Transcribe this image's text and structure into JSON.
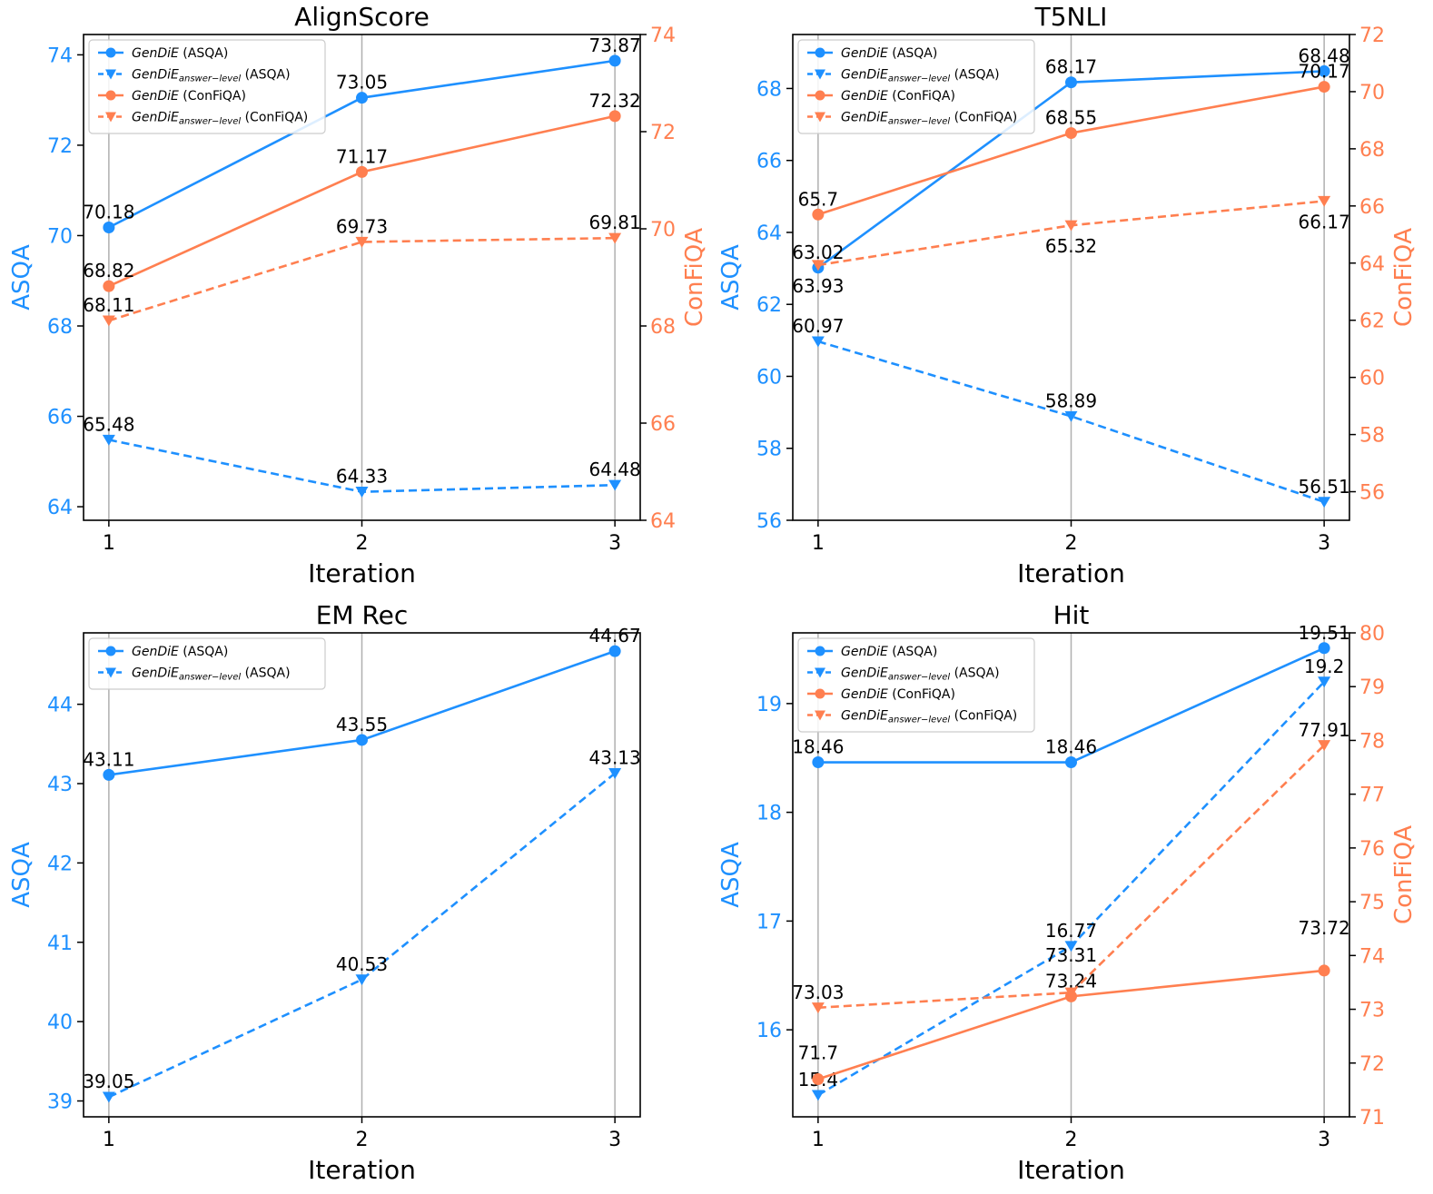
{
  "colors": {
    "asqa": "#1e90ff",
    "confiqa": "#ff7f50",
    "grid": "#b0b0b0",
    "axis": "#000000"
  },
  "chart_data": [
    {
      "type": "line",
      "title": "AlignScore",
      "xlabel": "Iteration",
      "ylabel_left": "ASQA",
      "ylabel_right": "ConFiQA",
      "x": [
        1,
        2,
        3
      ],
      "x_ticks": [
        "1",
        "2",
        "3"
      ],
      "xlim": [
        0.9,
        3.1
      ],
      "ylim_left": [
        63.7,
        74.45
      ],
      "left_ticks": [
        64,
        66,
        68,
        70,
        72,
        74
      ],
      "ylim_right": [
        64,
        74
      ],
      "right_ticks": [
        64,
        66,
        68,
        70,
        72,
        74
      ],
      "legend": "top-left",
      "grid": "x",
      "series": [
        {
          "name": "GenDiE (ASQA)",
          "legend_main": "GenDiE",
          "legend_sub": "",
          "legend_tail": "(ASQA)",
          "axis": "left",
          "color": "asqa",
          "style": "solid",
          "marker": "circle",
          "values": [
            70.18,
            73.05,
            73.87
          ],
          "labels": [
            "70.18",
            "73.05",
            "73.87"
          ]
        },
        {
          "name": "GenDiE answer-level (ASQA)",
          "legend_main": "GenDiE",
          "legend_sub": "answer−level",
          "legend_tail": "(ASQA)",
          "axis": "left",
          "color": "asqa",
          "style": "dashed",
          "marker": "triangle",
          "values": [
            65.48,
            64.33,
            64.48
          ],
          "labels": [
            "65.48",
            "64.33",
            "64.48"
          ]
        },
        {
          "name": "GenDiE (ConFiQA)",
          "legend_main": "GenDiE",
          "legend_sub": "",
          "legend_tail": "(ConFiQA)",
          "axis": "right",
          "color": "confiqa",
          "style": "solid",
          "marker": "circle",
          "values": [
            68.82,
            71.17,
            72.32
          ],
          "labels": [
            "68.82",
            "71.17",
            "72.32"
          ]
        },
        {
          "name": "GenDiE answer-level (ConFiQA)",
          "legend_main": "GenDiE",
          "legend_sub": "answer−level",
          "legend_tail": "(ConFiQA)",
          "axis": "right",
          "color": "confiqa",
          "style": "dashed",
          "marker": "triangle",
          "values": [
            68.11,
            69.73,
            69.81
          ],
          "labels": [
            "68.11",
            "69.73",
            "69.81"
          ]
        }
      ]
    },
    {
      "type": "line",
      "title": "T5NLI",
      "xlabel": "Iteration",
      "ylabel_left": "ASQA",
      "ylabel_right": "ConFiQA",
      "x": [
        1,
        2,
        3
      ],
      "x_ticks": [
        "1",
        "2",
        "3"
      ],
      "xlim": [
        0.9,
        3.1
      ],
      "ylim_left": [
        56,
        69.5
      ],
      "left_ticks": [
        56,
        58,
        60,
        62,
        64,
        66,
        68
      ],
      "ylim_right": [
        55,
        72
      ],
      "right_ticks": [
        56,
        58,
        60,
        62,
        64,
        66,
        68,
        70,
        72
      ],
      "legend": "top-left",
      "grid": "x",
      "series": [
        {
          "name": "GenDiE (ASQA)",
          "legend_main": "GenDiE",
          "legend_sub": "",
          "legend_tail": "(ASQA)",
          "axis": "left",
          "color": "asqa",
          "style": "solid",
          "marker": "circle",
          "values": [
            63.02,
            68.17,
            68.48
          ],
          "labels": [
            "63.02",
            "68.17",
            "68.48"
          ]
        },
        {
          "name": "GenDiE answer-level (ASQA)",
          "legend_main": "GenDiE",
          "legend_sub": "answer−level",
          "legend_tail": "(ASQA)",
          "axis": "left",
          "color": "asqa",
          "style": "dashed",
          "marker": "triangle",
          "values": [
            60.97,
            58.89,
            56.51
          ],
          "labels": [
            "60.97",
            "58.89",
            "56.51"
          ]
        },
        {
          "name": "GenDiE (ConFiQA)",
          "legend_main": "GenDiE",
          "legend_sub": "",
          "legend_tail": "(ConFiQA)",
          "axis": "right",
          "color": "confiqa",
          "style": "solid",
          "marker": "circle",
          "values": [
            65.7,
            68.55,
            70.17
          ],
          "labels": [
            "65.7",
            "68.55",
            "70.17"
          ]
        },
        {
          "name": "GenDiE answer-level (ConFiQA)",
          "legend_main": "GenDiE",
          "legend_sub": "answer−level",
          "legend_tail": "(ConFiQA)",
          "axis": "right",
          "color": "confiqa",
          "style": "dashed",
          "marker": "triangle",
          "values": [
            63.93,
            65.32,
            66.17
          ],
          "labels": [
            "63.93",
            "65.32",
            "66.17"
          ]
        }
      ]
    },
    {
      "type": "line",
      "title": "EM Rec",
      "xlabel": "Iteration",
      "ylabel_left": "ASQA",
      "x": [
        1,
        2,
        3
      ],
      "x_ticks": [
        "1",
        "2",
        "3"
      ],
      "xlim": [
        0.9,
        3.1
      ],
      "ylim_left": [
        38.8,
        44.9
      ],
      "left_ticks": [
        39,
        40,
        41,
        42,
        43,
        44
      ],
      "legend": "top-left",
      "grid": "x",
      "series": [
        {
          "name": "GenDiE (ASQA)",
          "legend_main": "GenDiE",
          "legend_sub": "",
          "legend_tail": "(ASQA)",
          "axis": "left",
          "color": "asqa",
          "style": "solid",
          "marker": "circle",
          "values": [
            43.11,
            43.55,
            44.67
          ],
          "labels": [
            "43.11",
            "43.55",
            "44.67"
          ]
        },
        {
          "name": "GenDiE answer-level (ASQA)",
          "legend_main": "GenDiE",
          "legend_sub": "answer−level",
          "legend_tail": "(ASQA)",
          "axis": "left",
          "color": "asqa",
          "style": "dashed",
          "marker": "triangle",
          "values": [
            39.05,
            40.53,
            43.13
          ],
          "labels": [
            "39.05",
            "40.53",
            "43.13"
          ]
        }
      ]
    },
    {
      "type": "line",
      "title": "Hit",
      "xlabel": "Iteration",
      "ylabel_left": "ASQA",
      "ylabel_right": "ConFiQA",
      "x": [
        1,
        2,
        3
      ],
      "x_ticks": [
        "1",
        "2",
        "3"
      ],
      "xlim": [
        0.9,
        3.1
      ],
      "ylim_left": [
        15.2,
        19.65
      ],
      "left_ticks": [
        16,
        17,
        18,
        19
      ],
      "ylim_right": [
        71,
        80
      ],
      "right_ticks": [
        71,
        72,
        73,
        74,
        75,
        76,
        77,
        78,
        79,
        80
      ],
      "legend": "top-left",
      "grid": "x",
      "series": [
        {
          "name": "GenDiE (ASQA)",
          "legend_main": "GenDiE",
          "legend_sub": "",
          "legend_tail": "(ASQA)",
          "axis": "left",
          "color": "asqa",
          "style": "solid",
          "marker": "circle",
          "values": [
            18.46,
            18.46,
            19.51
          ],
          "labels": [
            "18.46",
            "18.46",
            "19.51"
          ]
        },
        {
          "name": "GenDiE answer-level (ASQA)",
          "legend_main": "GenDiE",
          "legend_sub": "answer−level",
          "legend_tail": "(ASQA)",
          "axis": "left",
          "color": "asqa",
          "style": "dashed",
          "marker": "triangle",
          "values": [
            15.4,
            16.77,
            19.2
          ],
          "labels": [
            "15.4",
            "16.77",
            "19.2"
          ]
        },
        {
          "name": "GenDiE (ConFiQA)",
          "legend_main": "GenDiE",
          "legend_sub": "",
          "legend_tail": "(ConFiQA)",
          "axis": "right",
          "color": "confiqa",
          "style": "solid",
          "marker": "circle",
          "values": [
            71.7,
            73.24,
            73.72
          ],
          "labels": [
            "71.7",
            "73.24",
            "73.72"
          ]
        },
        {
          "name": "GenDiE answer-level (ConFiQA)",
          "legend_main": "GenDiE",
          "legend_sub": "answer−level",
          "legend_tail": "(ConFiQA)",
          "axis": "right",
          "color": "confiqa",
          "style": "dashed",
          "marker": "triangle",
          "values": [
            73.03,
            73.31,
            77.91
          ],
          "labels": [
            "73.03",
            "73.31",
            "77.91"
          ]
        }
      ]
    }
  ]
}
